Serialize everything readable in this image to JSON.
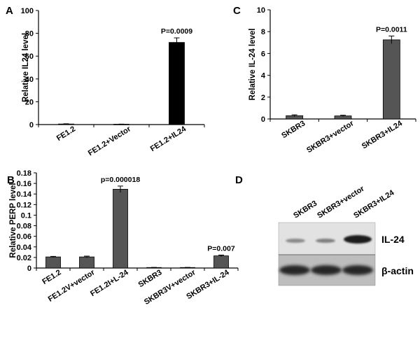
{
  "chart_data": [
    {
      "panel": "A",
      "type": "bar",
      "categories": [
        "FE1.2",
        "FE1.2+Vector",
        "FE1.2+IL24"
      ],
      "values": [
        0.5,
        0.3,
        72
      ],
      "errors": [
        0.2,
        0.1,
        4
      ],
      "bar_color": "#000000",
      "ylabel": "Relative IL24 level",
      "ylim": [
        0,
        100
      ],
      "yticks": [
        0,
        20,
        40,
        60,
        80,
        100
      ],
      "annotations": [
        {
          "category": "FE1.2+IL24",
          "text": "P=0.0009"
        }
      ]
    },
    {
      "panel": "B",
      "type": "bar",
      "categories": [
        "FE1.2",
        "FE1.2V+vector",
        "FE1.2I+L-24",
        "SKBR3",
        "SKBR3V+vector",
        "SKBR3+IL-24"
      ],
      "values": [
        0.021,
        0.021,
        0.149,
        0.001,
        0.001,
        0.023
      ],
      "errors": [
        0.001,
        0.0015,
        0.006,
        0.0002,
        0.0002,
        0.0015
      ],
      "bar_color": "#555555",
      "ylabel": "Relative PERP  level",
      "ylim": [
        0,
        0.18
      ],
      "yticks": [
        "0",
        "0.02",
        "0.04",
        "0.06",
        "0.08",
        "0.1",
        "0.12",
        "0.14",
        "0.16",
        "0.18"
      ],
      "annotations": [
        {
          "category": "FE1.2I+L-24",
          "text": "p=0.000018"
        },
        {
          "category": "SKBR3+IL-24",
          "text": "P=0.007"
        }
      ]
    },
    {
      "panel": "C",
      "type": "bar",
      "categories": [
        "SKBR3",
        "SKBR3+vector",
        "SKBR3+IL24"
      ],
      "values": [
        0.3,
        0.28,
        7.25
      ],
      "errors": [
        0.08,
        0.06,
        0.35
      ],
      "bar_color": "#555555",
      "ylabel": "Relative IL-24 level",
      "ylim": [
        0,
        10
      ],
      "yticks": [
        0,
        2,
        4,
        6,
        8,
        10
      ],
      "annotations": [
        {
          "category": "SKBR3+IL24",
          "text": "P=0.0011"
        }
      ]
    }
  ],
  "blot": {
    "panel": "D",
    "lanes": [
      "SKBR3",
      "SKBR3+vector",
      "SKBR3+IL24"
    ],
    "bands": [
      "IL-24",
      "β-actin"
    ]
  }
}
